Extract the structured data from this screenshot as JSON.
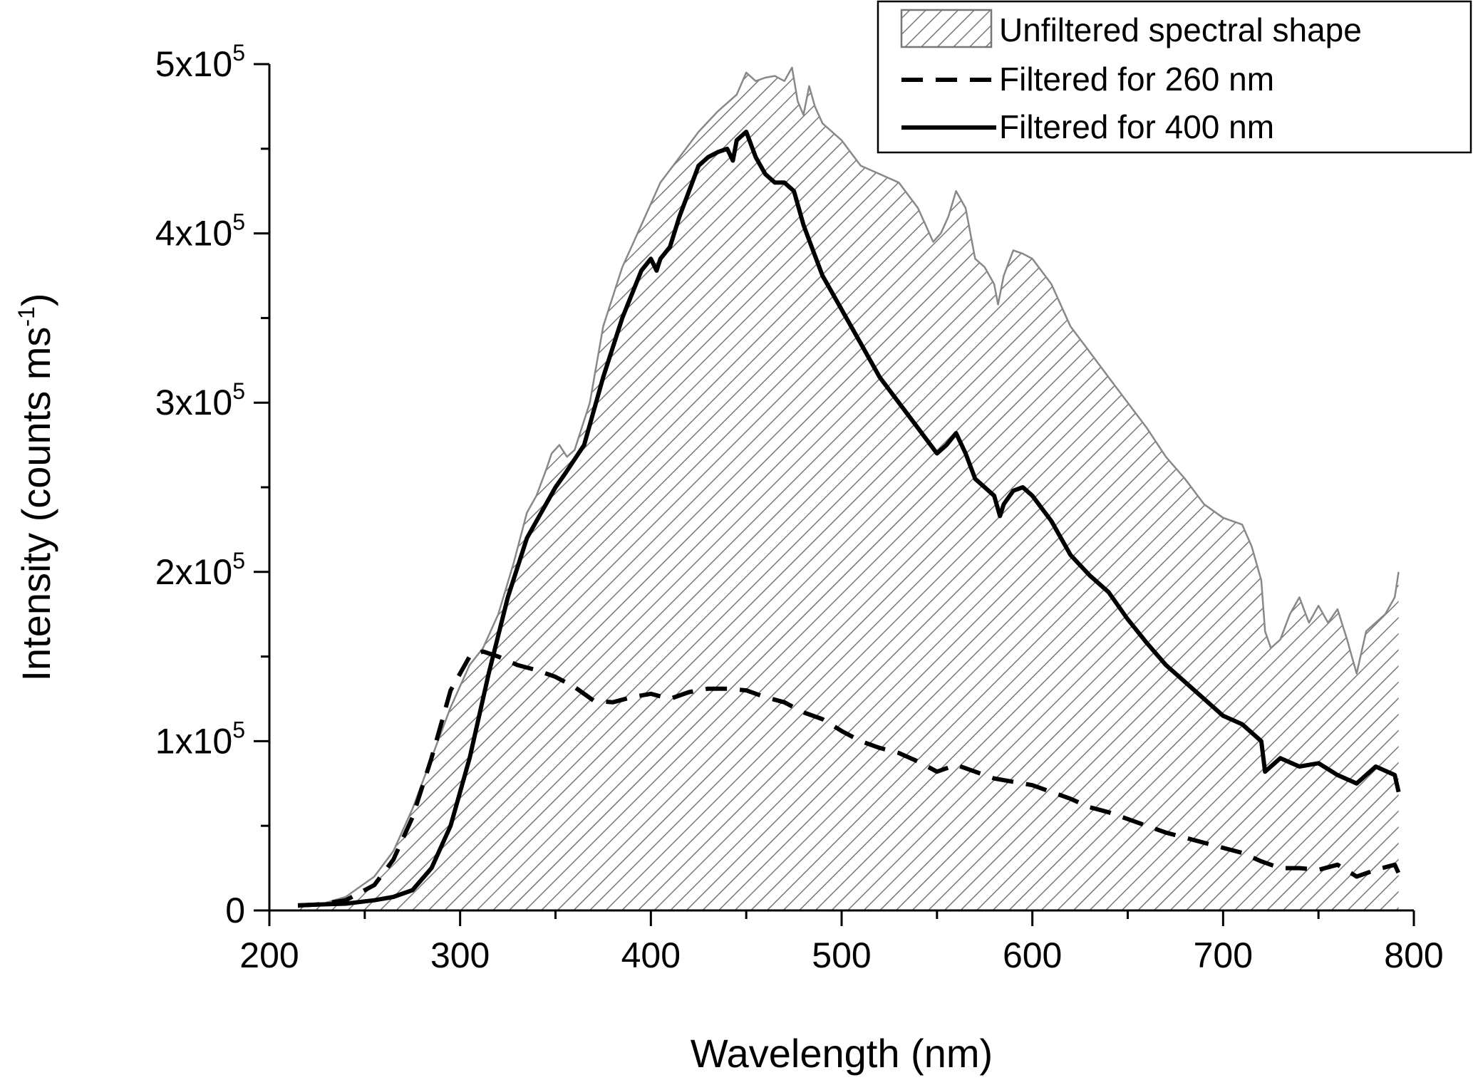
{
  "chart_data": {
    "type": "line",
    "xlabel": "Wavelength (nm)",
    "ylabel_main": "Intensity (counts ms",
    "ylabel_sup": "-1",
    "ylabel_close": ")",
    "xlim": [
      200,
      800
    ],
    "ylim": [
      0,
      500000
    ],
    "grid": false,
    "legend_position": "top-right",
    "x_ticks": [
      {
        "value": 200,
        "label": "200"
      },
      {
        "value": 300,
        "label": "300"
      },
      {
        "value": 400,
        "label": "400"
      },
      {
        "value": 500,
        "label": "500"
      },
      {
        "value": 600,
        "label": "600"
      },
      {
        "value": 700,
        "label": "700"
      },
      {
        "value": 800,
        "label": "800"
      }
    ],
    "y_ticks": [
      {
        "value": 0,
        "label": "0",
        "mantissa": "",
        "exp": ""
      },
      {
        "value": 100000,
        "label": "",
        "mantissa": "1x10",
        "exp": "5"
      },
      {
        "value": 200000,
        "label": "",
        "mantissa": "2x10",
        "exp": "5"
      },
      {
        "value": 300000,
        "label": "",
        "mantissa": "3x10",
        "exp": "5"
      },
      {
        "value": 400000,
        "label": "",
        "mantissa": "4x10",
        "exp": "5"
      },
      {
        "value": 500000,
        "label": "",
        "mantissa": "5x10",
        "exp": "5"
      }
    ],
    "series": [
      {
        "name": "Unfiltered spectral shape",
        "style": "hatched-area",
        "color": "#888888",
        "x": [
          215,
          225,
          240,
          255,
          265,
          275,
          285,
          295,
          305,
          312,
          320,
          328,
          335,
          340,
          345,
          348,
          352,
          356,
          360,
          368,
          375,
          385,
          395,
          405,
          415,
          425,
          435,
          445,
          450,
          455,
          460,
          465,
          470,
          474,
          477,
          480,
          483,
          486,
          490,
          500,
          510,
          520,
          530,
          540,
          548,
          552,
          556,
          560,
          565,
          570,
          575,
          580,
          582,
          585,
          590,
          595,
          600,
          610,
          620,
          630,
          640,
          650,
          660,
          670,
          680,
          690,
          700,
          710,
          715,
          720,
          722,
          725,
          730,
          735,
          740,
          745,
          750,
          755,
          760,
          765,
          770,
          775,
          780,
          785,
          790,
          792
        ],
        "y": [
          2000,
          3000,
          8000,
          20000,
          35000,
          60000,
          90000,
          120000,
          145000,
          155000,
          175000,
          205000,
          235000,
          245000,
          260000,
          270000,
          275000,
          268000,
          272000,
          300000,
          345000,
          380000,
          405000,
          430000,
          445000,
          460000,
          472000,
          482000,
          495000,
          490000,
          492000,
          493000,
          490000,
          498000,
          478000,
          470000,
          487000,
          475000,
          465000,
          455000,
          440000,
          435000,
          430000,
          415000,
          395000,
          400000,
          410000,
          425000,
          415000,
          385000,
          380000,
          370000,
          358000,
          375000,
          390000,
          388000,
          385000,
          370000,
          345000,
          330000,
          315000,
          300000,
          285000,
          268000,
          255000,
          240000,
          232000,
          228000,
          215000,
          195000,
          165000,
          155000,
          160000,
          175000,
          185000,
          170000,
          180000,
          170000,
          178000,
          160000,
          140000,
          165000,
          170000,
          175000,
          185000,
          200000
        ]
      },
      {
        "name": "Filtered for 260 nm",
        "style": "dashed",
        "color": "#000000",
        "x": [
          215,
          225,
          240,
          255,
          265,
          275,
          285,
          295,
          305,
          312,
          320,
          330,
          340,
          350,
          360,
          370,
          380,
          390,
          400,
          410,
          420,
          430,
          440,
          450,
          460,
          470,
          480,
          490,
          500,
          510,
          520,
          530,
          540,
          550,
          560,
          570,
          580,
          590,
          600,
          610,
          620,
          630,
          640,
          650,
          660,
          670,
          680,
          690,
          700,
          710,
          720,
          730,
          740,
          750,
          760,
          770,
          780,
          790,
          792
        ],
        "y": [
          3000,
          3500,
          6000,
          15000,
          30000,
          55000,
          90000,
          130000,
          150000,
          153000,
          150000,
          145000,
          142000,
          138000,
          132000,
          124000,
          123000,
          126000,
          128000,
          125000,
          129000,
          131000,
          131000,
          130000,
          126000,
          123000,
          117000,
          113000,
          106000,
          100000,
          96000,
          93000,
          88000,
          82000,
          86000,
          82000,
          78000,
          76000,
          74000,
          70000,
          66000,
          61000,
          58000,
          54000,
          50000,
          46000,
          43000,
          40000,
          37000,
          34000,
          29000,
          25000,
          25000,
          24000,
          27000,
          20000,
          24000,
          27000,
          22000
        ]
      },
      {
        "name": "Filtered for 400 nm",
        "style": "solid",
        "color": "#000000",
        "x": [
          215,
          225,
          240,
          255,
          265,
          275,
          285,
          295,
          305,
          315,
          325,
          335,
          345,
          350,
          355,
          365,
          375,
          385,
          395,
          400,
          403,
          405,
          410,
          415,
          420,
          425,
          430,
          435,
          440,
          443,
          445,
          450,
          455,
          460,
          465,
          470,
          475,
          480,
          485,
          490,
          500,
          510,
          520,
          530,
          540,
          550,
          555,
          560,
          565,
          570,
          580,
          583,
          585,
          590,
          595,
          600,
          610,
          620,
          630,
          640,
          650,
          660,
          670,
          680,
          690,
          700,
          710,
          715,
          720,
          722,
          725,
          730,
          740,
          750,
          760,
          770,
          780,
          790,
          792
        ],
        "y": [
          3000,
          3500,
          4000,
          6000,
          8000,
          12000,
          25000,
          50000,
          90000,
          140000,
          185000,
          220000,
          240000,
          250000,
          258000,
          275000,
          315000,
          350000,
          378000,
          385000,
          378000,
          385000,
          392000,
          410000,
          425000,
          440000,
          445000,
          448000,
          450000,
          443000,
          455000,
          460000,
          445000,
          435000,
          430000,
          430000,
          425000,
          405000,
          390000,
          375000,
          355000,
          335000,
          315000,
          300000,
          285000,
          270000,
          275000,
          282000,
          270000,
          255000,
          245000,
          233000,
          240000,
          248000,
          250000,
          245000,
          230000,
          210000,
          198000,
          188000,
          172000,
          158000,
          145000,
          135000,
          125000,
          115000,
          110000,
          105000,
          100000,
          82000,
          85000,
          90000,
          85000,
          87000,
          80000,
          75000,
          85000,
          80000,
          70000
        ]
      }
    ]
  }
}
